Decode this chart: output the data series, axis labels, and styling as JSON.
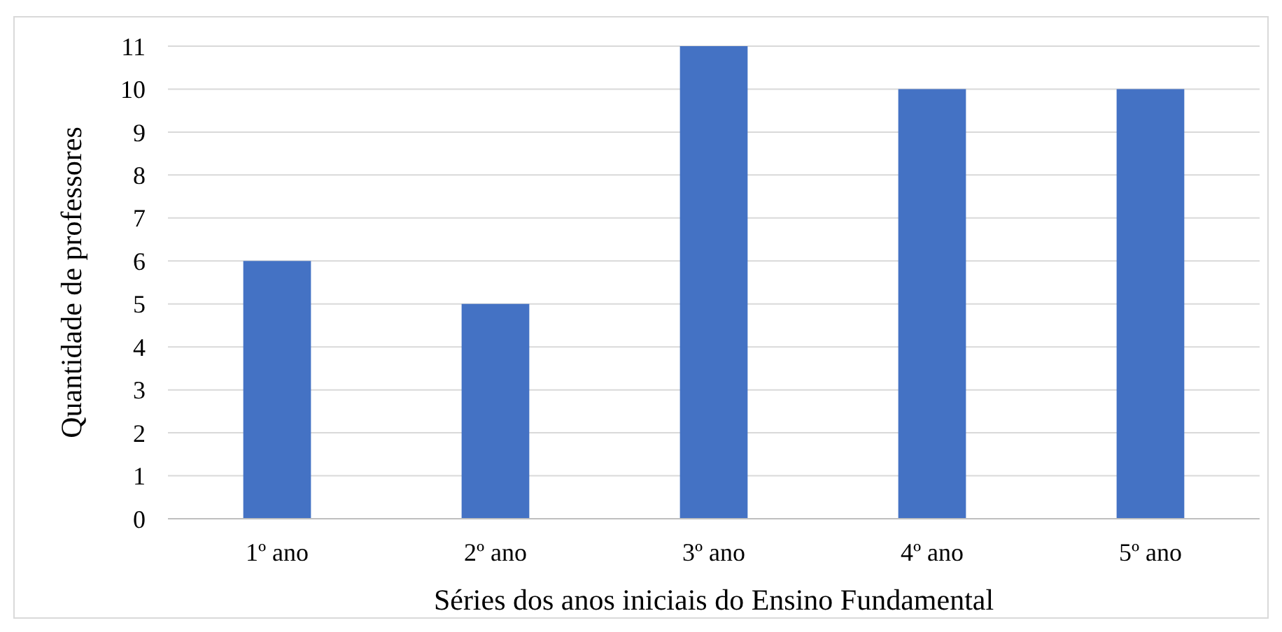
{
  "chart_data": {
    "type": "bar",
    "xlabel": "Séries dos anos iniciais do Ensino Fundamental",
    "ylabel": "Quantidade de professores",
    "categories": [
      "1º ano",
      "2º ano",
      "3º ano",
      "4º ano",
      "5º ano"
    ],
    "values": [
      6,
      5,
      11,
      10,
      10
    ],
    "color": "#4472c4",
    "ylim": [
      0,
      11
    ],
    "yticks": [
      0,
      1,
      2,
      3,
      4,
      5,
      6,
      7,
      8,
      9,
      10,
      11
    ],
    "grid": "y"
  }
}
